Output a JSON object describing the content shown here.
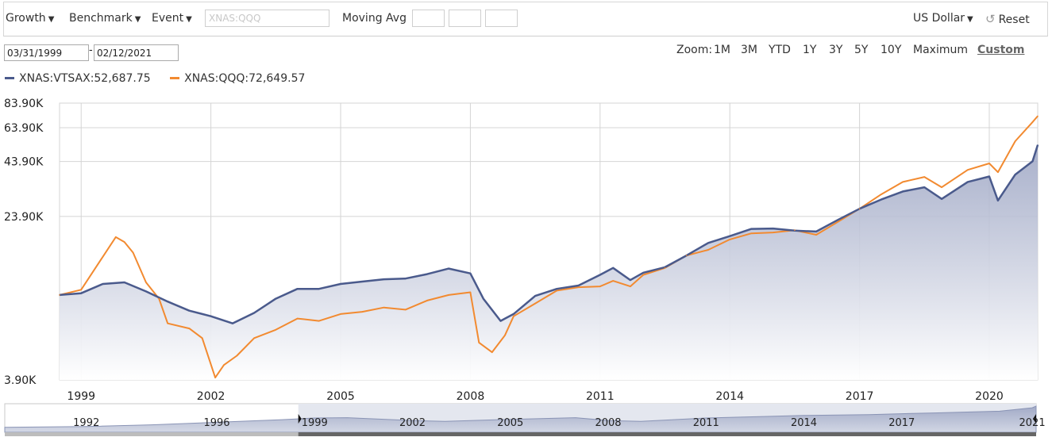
{
  "toolbar": {
    "growth": "Growth",
    "benchmark": "Benchmark",
    "event": "Event",
    "ticker_placeholder": "XNAS:QQQ",
    "moving_avg": "Moving Avg",
    "currency": "US Dollar",
    "reset": "Reset"
  },
  "dates": {
    "start": "03/31/1999",
    "end": "02/12/2021",
    "sep": "-"
  },
  "zoom": {
    "label": "Zoom:",
    "options": [
      "1M",
      "3M",
      "YTD",
      "1Y",
      "3Y",
      "5Y",
      "10Y",
      "Maximum",
      "Custom"
    ],
    "active": "Custom"
  },
  "legend": [
    {
      "label": "XNAS:VTSAX:52,687.75",
      "color": "#4a5a8c"
    },
    {
      "label": "XNAS:QQQ:72,649.57",
      "color": "#f28a30"
    }
  ],
  "colors": {
    "vtsax": "#4a5a8c",
    "qqq": "#f28a30",
    "grid": "#d4d4d4",
    "area_top": "#aab2cc"
  },
  "chart_data": {
    "type": "line",
    "y_axis_labels": [
      "83.90K",
      "63.90K",
      "43.90K",
      "23.90K",
      "3.90K"
    ],
    "y_ticks": [
      83900,
      63900,
      43900,
      23900,
      3900
    ],
    "ylim": [
      3900,
      83900
    ],
    "y_scale": "log",
    "xlim": [
      1998.5,
      2021.12
    ],
    "x_ticks": [
      "1999",
      "2002",
      "2005",
      "2008",
      "2011",
      "2014",
      "2017",
      "2020"
    ],
    "grid": true,
    "series": [
      {
        "name": "XNAS:VTSAX",
        "color": "#4a5a8c",
        "area": true,
        "x": [
          1998.5,
          1999.0,
          1999.5,
          2000.0,
          2000.5,
          2001.0,
          2001.5,
          2002.0,
          2002.5,
          2003.0,
          2003.5,
          2004.0,
          2004.5,
          2005.0,
          2005.5,
          2006.0,
          2006.5,
          2007.0,
          2007.5,
          2008.0,
          2008.3,
          2008.7,
          2009.0,
          2009.5,
          2010.0,
          2010.5,
          2011.0,
          2011.3,
          2011.7,
          2012.0,
          2012.5,
          2013.0,
          2013.5,
          2014.0,
          2014.5,
          2015.0,
          2015.5,
          2016.0,
          2016.5,
          2017.0,
          2017.5,
          2018.0,
          2018.5,
          2018.9,
          2019.5,
          2020.0,
          2020.2,
          2020.6,
          2021.0,
          2021.12
        ],
        "y": [
          10000,
          10200,
          11300,
          11500,
          10400,
          9300,
          8400,
          7900,
          7300,
          8200,
          9600,
          10700,
          10700,
          11300,
          11600,
          11900,
          12000,
          12600,
          13400,
          12700,
          9600,
          7500,
          8100,
          9900,
          10700,
          11100,
          12500,
          13500,
          11800,
          12800,
          13600,
          15500,
          17800,
          19200,
          20800,
          20900,
          20400,
          20200,
          23000,
          26000,
          28800,
          31500,
          33000,
          29000,
          35000,
          37200,
          28500,
          38000,
          44000,
          52687.75
        ]
      },
      {
        "name": "XNAS:QQQ",
        "color": "#f28a30",
        "area": false,
        "x": [
          1998.5,
          1999.0,
          1999.3,
          1999.8,
          2000.0,
          2000.2,
          2000.5,
          2000.8,
          2001.0,
          2001.5,
          2001.8,
          2002.1,
          2002.3,
          2002.6,
          2003.0,
          2003.5,
          2004.0,
          2004.5,
          2005.0,
          2005.5,
          2006.0,
          2006.5,
          2007.0,
          2007.5,
          2008.0,
          2008.2,
          2008.5,
          2008.8,
          2009.0,
          2009.5,
          2010.0,
          2010.5,
          2011.0,
          2011.3,
          2011.7,
          2012.0,
          2012.5,
          2013.0,
          2013.5,
          2014.0,
          2014.5,
          2015.0,
          2015.5,
          2016.0,
          2016.5,
          2017.0,
          2017.5,
          2018.0,
          2018.5,
          2018.9,
          2019.5,
          2020.0,
          2020.2,
          2020.6,
          2021.0,
          2021.12
        ],
        "y": [
          10000,
          10600,
          13200,
          19000,
          18000,
          16000,
          11500,
          9600,
          7300,
          6900,
          6200,
          4000,
          4600,
          5100,
          6200,
          6800,
          7700,
          7500,
          8100,
          8300,
          8700,
          8500,
          9400,
          10000,
          10300,
          5900,
          5300,
          6400,
          7900,
          9100,
          10500,
          10900,
          11000,
          11700,
          11000,
          12500,
          13500,
          15500,
          16500,
          18500,
          19800,
          20000,
          20500,
          19500,
          22500,
          26000,
          30500,
          35000,
          37000,
          33000,
          40000,
          43000,
          39000,
          55000,
          68000,
          72649.57
        ]
      }
    ],
    "navigator": {
      "labels": [
        "1992",
        "1996",
        "1999",
        "2002",
        "2005",
        "2008",
        "2011",
        "2014",
        "2017",
        "2021"
      ],
      "xlim": [
        1989.5,
        2021.12
      ],
      "selected": [
        1998.5,
        2021.12
      ],
      "x": [
        1989.5,
        1992,
        1994,
        1996,
        1998,
        1999,
        2000,
        2002,
        2003,
        2005,
        2007,
        2008,
        2009,
        2011,
        2013,
        2014,
        2016,
        2017,
        2018,
        2019,
        2020,
        2021,
        2021.12
      ],
      "y": [
        0.15,
        0.2,
        0.3,
        0.45,
        0.6,
        0.7,
        0.72,
        0.55,
        0.5,
        0.62,
        0.72,
        0.55,
        0.5,
        0.7,
        0.8,
        0.85,
        0.9,
        0.95,
        1.0,
        1.05,
        1.1,
        1.3,
        1.4
      ]
    }
  }
}
